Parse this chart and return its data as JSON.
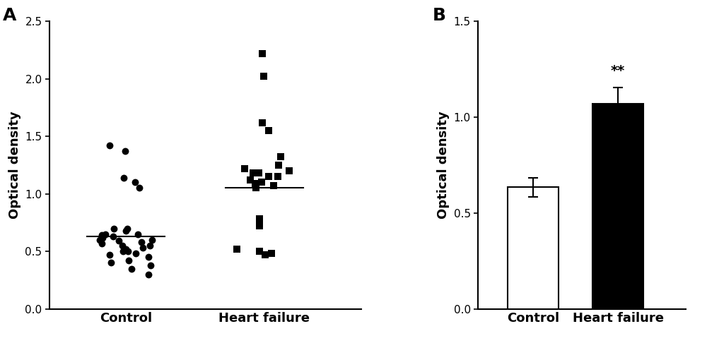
{
  "panel_A_label": "A",
  "panel_B_label": "B",
  "ylabel_A": "Optical density",
  "ylabel_B": "Optical density",
  "xlabel_A1": "Control",
  "xlabel_A2": "Heart failure",
  "xlabel_B1": "Control",
  "xlabel_B2": "Heart failure",
  "ylim_A": [
    0.0,
    2.5
  ],
  "yticks_A": [
    0.0,
    0.5,
    1.0,
    1.5,
    2.0,
    2.5
  ],
  "ylim_B": [
    0.0,
    1.5
  ],
  "yticks_B": [
    0.0,
    0.5,
    1.0,
    1.5
  ],
  "control_dots": [
    0.62,
    0.58,
    0.55,
    0.65,
    0.6,
    0.5,
    0.52,
    0.57,
    0.63,
    0.68,
    0.48,
    0.53,
    0.59,
    0.64,
    0.7,
    0.45,
    0.47,
    0.5,
    0.55,
    0.6,
    0.35,
    0.38,
    0.4,
    0.42,
    0.3,
    0.65,
    0.7,
    1.05,
    1.1,
    1.14,
    1.42,
    1.37
  ],
  "control_mean": 0.63,
  "hf_squares": [
    2.22,
    2.02,
    1.62,
    1.55,
    1.32,
    1.18,
    1.15,
    1.12,
    1.1,
    1.09,
    1.07,
    1.05,
    1.1,
    1.15,
    1.18,
    1.2,
    1.22,
    1.25,
    0.78,
    0.72,
    0.48,
    0.47,
    0.5,
    0.52
  ],
  "hf_mean": 1.05,
  "bar_control_mean": 0.635,
  "bar_control_sem": 0.05,
  "bar_hf_mean": 1.07,
  "bar_hf_sem": 0.085,
  "control_bar_color": "#ffffff",
  "hf_bar_color": "#000000",
  "bar_edge_color": "#000000",
  "significance_text": "**",
  "background_color": "#ffffff",
  "text_color": "#000000"
}
